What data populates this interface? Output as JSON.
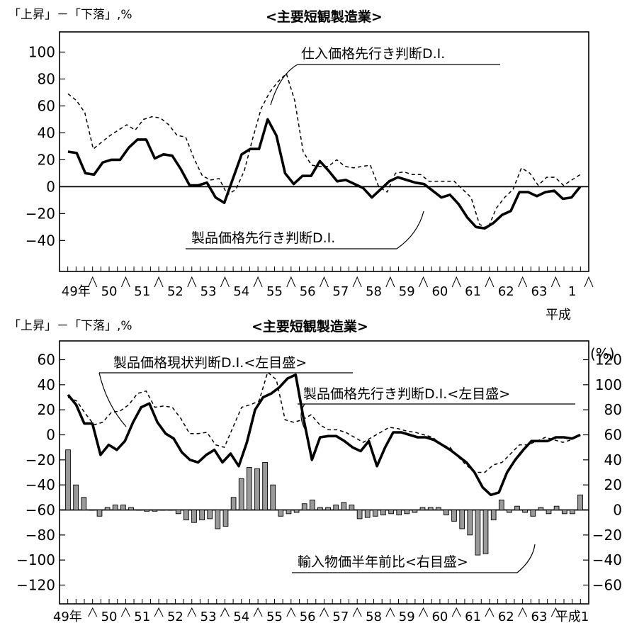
{
  "chart_data": [
    {
      "type": "line",
      "title": "<主要短観製造業>",
      "ylabel": "「上昇」－「下落」,%",
      "ylim": [
        -60,
        120
      ],
      "yticks": [
        100,
        80,
        60,
        40,
        20,
        0,
        -20,
        -40
      ],
      "x_labels": [
        "49年",
        "50",
        "51",
        "52",
        "53",
        "54",
        "55",
        "56",
        "57",
        "58",
        "59",
        "60",
        "61",
        "62",
        "63",
        "1"
      ],
      "x_sublabel": "平成",
      "zero_line": true,
      "series": [
        {
          "name": "仕入価格先行き判断D.I.",
          "style": "dashed",
          "values": [
            69,
            64,
            55,
            28,
            33,
            38,
            42,
            46,
            42,
            50,
            52,
            51,
            46,
            38,
            37,
            21,
            8,
            5,
            6,
            -6,
            -2,
            12,
            36,
            58,
            70,
            78,
            84,
            64,
            26,
            16,
            15,
            15,
            20,
            15,
            14,
            15,
            16,
            0,
            -4,
            10,
            11,
            9,
            9,
            4,
            4,
            4,
            4,
            -2,
            -8,
            -28,
            -31,
            -16,
            -8,
            -2,
            14,
            10,
            1,
            7,
            7,
            1,
            5,
            9
          ]
        },
        {
          "name": "製品価格先行き判断D.I.",
          "style": "solid",
          "values": [
            26,
            25,
            10,
            9,
            18,
            20,
            20,
            29,
            35,
            35,
            21,
            24,
            23,
            13,
            1,
            1,
            3,
            -8,
            -12,
            6,
            24,
            28,
            28,
            50,
            38,
            10,
            2,
            8,
            8,
            19,
            12,
            4,
            5,
            2,
            -1,
            -8,
            -2,
            4,
            7,
            5,
            3,
            2,
            -3,
            -8,
            -6,
            -13,
            -23,
            -30,
            -31,
            -27,
            -21,
            -18,
            -4,
            -4,
            -7,
            -4,
            -3,
            -9,
            -8,
            0
          ]
        }
      ],
      "annotations": [
        "仕入価格先行き判断D.I.",
        "製品価格先行き判断D.I."
      ]
    },
    {
      "type": "line",
      "title": "<主要短観製造業>",
      "ylabel": "「上昇」－「下落」,%",
      "y2label": "(%)",
      "ylim_left": [
        -130,
        70
      ],
      "yticks_left": [
        60,
        40,
        20,
        0,
        -20,
        -40,
        -60,
        -80,
        -100,
        -120
      ],
      "ylim_right": [
        -70,
        130
      ],
      "yticks_right": [
        120,
        100,
        80,
        60,
        40,
        20,
        0,
        -20,
        -40,
        -60
      ],
      "x_labels": [
        "49年",
        "50",
        "51",
        "52",
        "53",
        "54",
        "55",
        "56",
        "57",
        "58",
        "59",
        "60",
        "61",
        "62",
        "63",
        "平成1"
      ],
      "baseline_left": -60,
      "series": [
        {
          "name": "製品価格現状判断D.I.<左目盛>",
          "style": "solid",
          "axis": "left",
          "values": [
            32,
            24,
            9,
            9,
            -16,
            -8,
            -12,
            -5,
            10,
            22,
            25,
            10,
            1,
            -3,
            -14,
            -20,
            -22,
            -16,
            -12,
            -22,
            -15,
            -25,
            -6,
            20,
            30,
            33,
            38,
            45,
            48,
            12,
            -20,
            -2,
            -1,
            -1,
            -5,
            -10,
            -13,
            -5,
            -25,
            -10,
            2,
            2,
            0,
            -2,
            -2,
            -4,
            -8,
            -12,
            -17,
            -22,
            -30,
            -42,
            -48,
            -46,
            -30,
            -20,
            -12,
            -5,
            -5,
            -5,
            -2,
            -2,
            -3,
            0
          ]
        },
        {
          "name": "製品価格先行き判断D.I.<左目盛>",
          "style": "dashed",
          "axis": "left",
          "values": [
            30,
            27,
            17,
            8,
            10,
            18,
            19,
            24,
            33,
            35,
            22,
            23,
            22,
            13,
            1,
            1,
            2,
            -8,
            -10,
            6,
            22,
            24,
            27,
            50,
            44,
            12,
            10,
            12,
            16,
            8,
            4,
            4,
            2,
            -2,
            -6,
            -2,
            2,
            6,
            5,
            3,
            2,
            0,
            -2,
            -8,
            -10,
            -18,
            -25,
            -30,
            -30,
            -24,
            -22,
            -15,
            -8,
            -8,
            -5,
            -2,
            -4,
            -6,
            -4,
            0
          ]
        },
        {
          "name": "輸入物価半年前比<右目盛>",
          "type": "bar",
          "axis": "right",
          "values": [
            48,
            20,
            10,
            0,
            -5,
            2,
            4,
            4,
            2,
            0,
            -1,
            -1,
            0,
            0,
            -3,
            -8,
            -10,
            -8,
            -7,
            -15,
            -13,
            10,
            25,
            34,
            33,
            38,
            20,
            -5,
            -3,
            -2,
            5,
            8,
            2,
            2,
            4,
            6,
            4,
            -7,
            -6,
            -5,
            -4,
            -3,
            -4,
            -3,
            -2,
            2,
            2,
            2,
            -4,
            -9,
            -15,
            -20,
            -36,
            -35,
            -8,
            8,
            -2,
            3,
            -2,
            -5,
            2,
            -3,
            3,
            -3,
            -3,
            12
          ]
        }
      ],
      "annotations": [
        "製品価格現状判断D.I.<左目盛>",
        "製品価格先行き判断D.I.<左目盛>",
        "輸入物価半年前比<右目盛>"
      ]
    }
  ]
}
